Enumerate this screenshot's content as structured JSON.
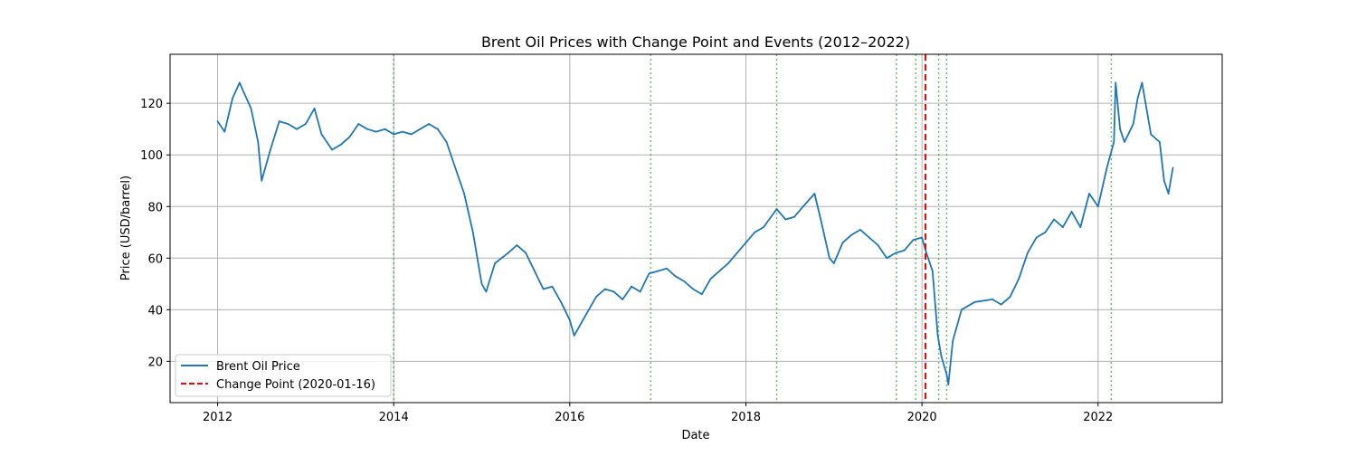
{
  "chart_data": {
    "type": "line",
    "title": "Brent Oil Prices with Change Point and Events (2012–2022)",
    "xlabel": "Date",
    "ylabel": "Price (USD/barrel)",
    "xlim": [
      2011.46,
      2023.41
    ],
    "ylim": [
      4,
      139
    ],
    "x_ticks": [
      2012,
      2014,
      2016,
      2018,
      2020,
      2022
    ],
    "x_tick_labels": [
      "2012",
      "2014",
      "2016",
      "2018",
      "2020",
      "2022"
    ],
    "y_ticks": [
      20,
      40,
      60,
      80,
      100,
      120
    ],
    "y_tick_labels": [
      "20",
      "40",
      "60",
      "80",
      "100",
      "120"
    ],
    "grid": true,
    "legend_position": "lower-left",
    "legend": [
      "Brent Oil Price",
      "Change Point (2020-01-16)"
    ],
    "colors": {
      "series": "#1f77b4",
      "change_point": "#ff0000",
      "events": "#2ca02c"
    },
    "series": [
      {
        "name": "Brent Oil Price",
        "x": [
          2012.0,
          2012.08,
          2012.17,
          2012.25,
          2012.3,
          2012.38,
          2012.46,
          2012.5,
          2012.6,
          2012.7,
          2012.8,
          2012.9,
          2013.0,
          2013.1,
          2013.18,
          2013.3,
          2013.4,
          2013.5,
          2013.6,
          2013.7,
          2013.8,
          2013.9,
          2014.0,
          2014.1,
          2014.2,
          2014.3,
          2014.4,
          2014.5,
          2014.6,
          2014.7,
          2014.8,
          2014.9,
          2015.0,
          2015.05,
          2015.15,
          2015.3,
          2015.4,
          2015.5,
          2015.6,
          2015.7,
          2015.8,
          2015.9,
          2016.0,
          2016.05,
          2016.15,
          2016.3,
          2016.4,
          2016.5,
          2016.6,
          2016.7,
          2016.8,
          2016.9,
          2017.0,
          2017.1,
          2017.2,
          2017.3,
          2017.4,
          2017.5,
          2017.6,
          2017.7,
          2017.8,
          2017.9,
          2018.0,
          2018.1,
          2018.2,
          2018.35,
          2018.45,
          2018.55,
          2018.65,
          2018.78,
          2018.85,
          2018.95,
          2019.0,
          2019.1,
          2019.2,
          2019.3,
          2019.4,
          2019.5,
          2019.6,
          2019.7,
          2019.8,
          2019.9,
          2020.0,
          2020.05,
          2020.12,
          2020.18,
          2020.22,
          2020.28,
          2020.3,
          2020.35,
          2020.45,
          2020.6,
          2020.8,
          2020.9,
          2021.0,
          2021.1,
          2021.2,
          2021.3,
          2021.4,
          2021.5,
          2021.6,
          2021.7,
          2021.8,
          2021.9,
          2022.0,
          2022.1,
          2022.18,
          2022.2,
          2022.25,
          2022.3,
          2022.4,
          2022.45,
          2022.5,
          2022.6,
          2022.7,
          2022.75,
          2022.8,
          2022.85
        ],
        "y": [
          113,
          109,
          122,
          128,
          124,
          118,
          105,
          90,
          102,
          113,
          112,
          110,
          112,
          118,
          108,
          102,
          104,
          107,
          112,
          110,
          109,
          110,
          108,
          109,
          108,
          110,
          112,
          110,
          105,
          95,
          85,
          70,
          50,
          47,
          58,
          62,
          65,
          62,
          55,
          48,
          49,
          43,
          36,
          30,
          36,
          45,
          48,
          47,
          44,
          49,
          47,
          54,
          55,
          56,
          53,
          51,
          48,
          46,
          52,
          55,
          58,
          62,
          66,
          70,
          72,
          79,
          75,
          76,
          80,
          85,
          75,
          60,
          58,
          66,
          69,
          71,
          68,
          65,
          60,
          62,
          63,
          67,
          68,
          62,
          55,
          30,
          22,
          15,
          11,
          28,
          40,
          43,
          44,
          42,
          45,
          52,
          62,
          68,
          70,
          75,
          72,
          78,
          72,
          85,
          80,
          95,
          105,
          128,
          110,
          105,
          112,
          122,
          128,
          108,
          105,
          90,
          85,
          95
        ]
      }
    ],
    "change_point": {
      "x": 2020.04,
      "label": "Change Point (2020-01-16)"
    },
    "event_lines": [
      2014.0,
      2016.92,
      2018.35,
      2019.71,
      2019.93,
      2020.19,
      2020.28,
      2022.15
    ]
  }
}
